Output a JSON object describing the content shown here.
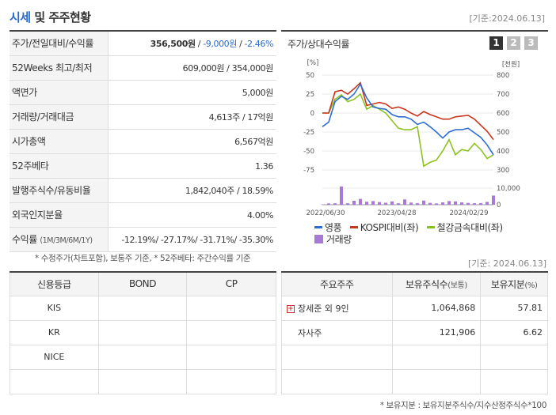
{
  "header": {
    "title_a": "시세",
    "title_b": " 및 주주현황",
    "date": "[기준:2024.06.13]"
  },
  "quote": {
    "rows": [
      {
        "label": "주가/전일대비/수익률",
        "price": "356,500원",
        "sep1": " / ",
        "change": "-9,000원",
        "sep2": " / ",
        "pct": "-2.46%"
      },
      {
        "label": "52Weeks 최고/최저",
        "value": "609,000원 / 354,000원"
      },
      {
        "label": "액면가",
        "value": "5,000원"
      },
      {
        "label": "거래량/거래대금",
        "value": "4,613주 / 17억원"
      },
      {
        "label": "시가총액",
        "value": "6,567억원"
      },
      {
        "label": "52주베타",
        "value": "1.36"
      },
      {
        "label": "발행주식수/유동비율",
        "value": "1,842,040주 / 18.59%"
      },
      {
        "label": "외국인지분율",
        "value": "4.00%"
      },
      {
        "label": "수익률",
        "label_small": "(1M/3M/6M/1Y)",
        "value": "-12.19%/ -27.17%/ -31.71%/ -35.30%"
      }
    ],
    "note": "* 수정주가(차트포함), 보통주 기준, * 52주베타: 주간수익률 기준"
  },
  "chart_panel": {
    "title": "주가/상대수익률",
    "tabs": [
      "1",
      "2",
      "3"
    ],
    "colors": {
      "price": "#2d6fd1",
      "kospi": "#c8361e",
      "steel": "#8cc21e",
      "volume": "#a77ad6"
    }
  },
  "chart_data": {
    "type": "line",
    "left_axis_unit": "[%]",
    "right_axis_unit": "[천원]",
    "left_ticks": [
      "50",
      "25",
      "0",
      "-25",
      "-50",
      "-75"
    ],
    "right_ticks": [
      "800",
      "700",
      "600",
      "500",
      "400",
      "300"
    ],
    "volume_ticks": [
      "10,000",
      "0"
    ],
    "x_ticks": [
      "2022/06/30",
      "2023/04/28",
      "2024/02/29"
    ],
    "ylim_left": [
      -75,
      50
    ],
    "ylim_right": [
      300,
      800
    ],
    "volume_max": 10000,
    "series": [
      {
        "name": "영풍",
        "axis": "left",
        "values": [
          -18,
          -12,
          15,
          22,
          18,
          25,
          38,
          20,
          8,
          6,
          5,
          -2,
          -5,
          -5,
          -8,
          -15,
          -12,
          -18,
          -25,
          -33,
          -25,
          -22,
          -22,
          -20,
          -26,
          -32,
          -42,
          -55
        ]
      },
      {
        "name": "KOSPI대비(좌)",
        "axis": "left",
        "values": [
          0,
          0,
          28,
          30,
          25,
          32,
          40,
          10,
          12,
          14,
          12,
          6,
          8,
          5,
          0,
          -4,
          2,
          -2,
          -5,
          -8,
          -8,
          -5,
          -4,
          -3,
          -8,
          -16,
          -24,
          -35
        ]
      },
      {
        "name": "철강금속대비(좌)",
        "axis": "left",
        "values": [
          0,
          0,
          18,
          24,
          15,
          18,
          25,
          5,
          10,
          5,
          0,
          -10,
          -20,
          -22,
          -22,
          -18,
          -70,
          -65,
          -62,
          -50,
          -35,
          -55,
          -48,
          -50,
          -40,
          -48,
          -60,
          -55
        ]
      },
      {
        "name": "거래량",
        "axis": "volume",
        "values": [
          200,
          800,
          900,
          11000,
          900,
          2400,
          3500,
          1800,
          2200,
          1600,
          1200,
          2000,
          900,
          3200,
          1300,
          900,
          2500,
          1100,
          800,
          1400,
          2200,
          2000,
          1400,
          1100,
          900,
          1000,
          1700,
          5500
        ]
      }
    ]
  },
  "date2": "[기준: 2024.06.13]",
  "credit": {
    "headers": [
      "신용등급",
      "BOND",
      "CP"
    ],
    "rows": [
      {
        "agency": "KIS",
        "bond": "",
        "cp": ""
      },
      {
        "agency": "KR",
        "bond": "",
        "cp": ""
      },
      {
        "agency": "NICE",
        "bond": "",
        "cp": ""
      },
      {
        "agency": "",
        "bond": "",
        "cp": ""
      }
    ]
  },
  "holders": {
    "headers": {
      "name": "주요주주",
      "shares": "보유주식수",
      "shares_small": "(보통)",
      "ratio": "보유지분",
      "ratio_small": "(%)"
    },
    "rows": [
      {
        "name": "장세준 외 9인",
        "shares": "1,064,868",
        "ratio": "57.81",
        "expand": "+"
      },
      {
        "name": "자사주",
        "shares": "121,906",
        "ratio": "6.62"
      },
      {
        "name": "",
        "shares": "",
        "ratio": ""
      },
      {
        "name": "",
        "shares": "",
        "ratio": ""
      }
    ],
    "note": "* 보유지분 : 보유지분주식수/지수산정주식수*100"
  }
}
